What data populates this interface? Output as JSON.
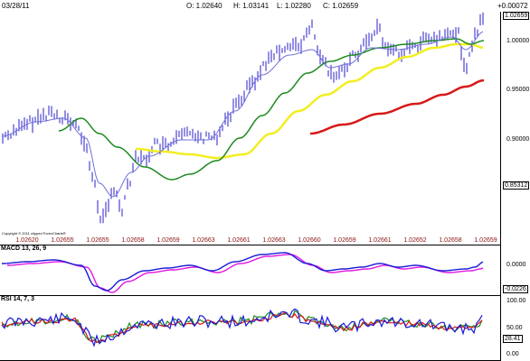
{
  "header": {
    "date": "03/28/11",
    "open": "O: 1.02640",
    "high": "H: 1.03141",
    "low": "L: 1.02280",
    "close": "C: 1.02659",
    "change": "+0.00072"
  },
  "copyright": "Copyright © 2011 clipped ForexCharts®",
  "price_pane": {
    "axis_ticks": [
      "1.00000",
      "0.95000",
      "0.90000"
    ],
    "last_price_badge": "1.02659",
    "marker_badge": "0.85312",
    "xaxis_labels": [
      "1.02620",
      "1.02655",
      "1.02655",
      "1.02658",
      "1.02659",
      "1.02663",
      "1.02661",
      "1.02663",
      "1.02660",
      "1.02659",
      "1.02661",
      "1.02652",
      "1.02658",
      "1.02659"
    ],
    "colors": {
      "bars": "#2a1fc8",
      "ma_fast": "#7070d8",
      "ma_green": "#1d8a1d",
      "ma_yellow": "#f2ee20",
      "ma_red": "#d81818"
    }
  },
  "macd_pane": {
    "title": "MACD 13, 26, 9",
    "axis_ticks": [
      "0.0000"
    ],
    "bottom_badge": "-0.0226",
    "colors": {
      "line": "#1a1ad8",
      "signal": "#e018e0"
    }
  },
  "rsi_pane": {
    "title": "RSI 14, 7, 3",
    "axis_ticks": [
      "100.00",
      "50.00",
      "0.00"
    ],
    "value_badge": "28.41",
    "colors": {
      "line1": "#1a1ad8",
      "line2": "#d81818",
      "line3": "#1d8a1d"
    }
  }
}
